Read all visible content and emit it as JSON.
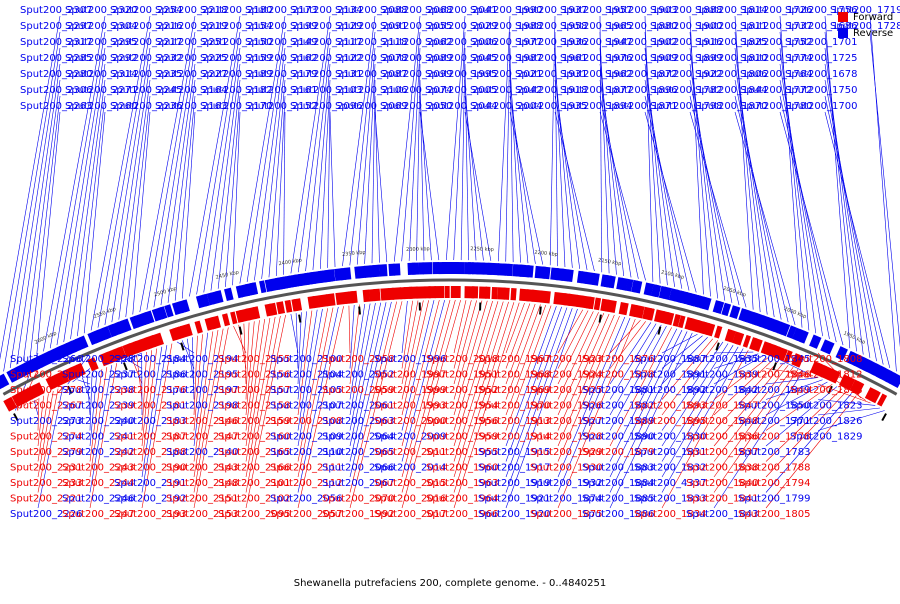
{
  "title": "Shewanella putrefaciens 200, complete genome. - 0..4840251",
  "legend": [
    {
      "label": "Forward",
      "color": "#ee0000"
    },
    {
      "label": "Reverse",
      "color": "#0000ee"
    }
  ],
  "colors": {
    "forward": "#ee0000",
    "reverse": "#0000ee",
    "backbone": "#555555",
    "ticks": "#000000"
  },
  "map": {
    "start_kbp": 2650,
    "end_kbp": 1900,
    "step_kbp": 50
  },
  "tick_labels": [
    "2650 kbp",
    "2600 kbp",
    "2550 kbp",
    "2500 kbp",
    "2450 kbp",
    "2400 kbp",
    "2350 kbp",
    "2300 kbp",
    "2250 kbp",
    "2200 kbp",
    "2150 kbp",
    "2100 kbp",
    "2050 kbp",
    "2000 kbp",
    "1950 kbp",
    "1900 kbp"
  ],
  "labels_outside": [
    "Sput200_2307",
    "Sput200_2297",
    "Sput200_2317",
    "Sput200_2285",
    "Sput200_2280",
    "Sput200_2306",
    "Sput200_2263",
    "Sput200_2320",
    "Sput200_2304",
    "Sput200_2295",
    "Sput200_2292",
    "Sput200_2314",
    "Sput200_2271",
    "Sput200_2260",
    "Sput200_2254",
    "Sput200_2216",
    "Sput200_2217",
    "Sput200_2232",
    "Sput200_2235",
    "Sput200_2245",
    "Sput200_2236",
    "Sput200_2218",
    "Sput200_2219",
    "Sput200_2251",
    "Sput200_2225",
    "Sput200_2227",
    "Sput200_2164",
    "Sput200_2163",
    "Sput200_2180",
    "Sput200_2154",
    "Sput200_2150",
    "Sput200_2159",
    "Sput200_2189",
    "Sput200_2182",
    "Sput200_2170",
    "Sput200_2173",
    "Sput200_2199",
    "Sput200_2149",
    "Sput200_2162",
    "Sput200_2179",
    "Sput200_2161",
    "Sput200_2152",
    "Sput200_2134",
    "Sput200_2129",
    "Sput200_2117",
    "Sput200_2122",
    "Sput200_2131",
    "Sput200_2103",
    "Sput200_2096",
    "Sput200_2088",
    "Sput200_2091",
    "Sput200_2118",
    "Sput200_2078",
    "Sput200_2087",
    "Sput200_2106",
    "Sput200_2069",
    "Sput200_2068",
    "Sput200_2055",
    "Sput200_2062",
    "Sput200_2089",
    "Sput200_2099",
    "Sput200_2074",
    "Sput200_2050",
    "Sput200_2041",
    "Sput200_2029",
    "Sput200_2006",
    "Sput200_2045",
    "Sput200_1995",
    "Sput200_2005",
    "Sput200_2044",
    "Sput200_1990",
    "Sput200_1988",
    "Sput200_1977",
    "Sput200_1987",
    "Sput200_2021",
    "Sput200_2042",
    "Sput200_2004",
    "Sput200_1937",
    "Sput200_1958",
    "Sput200_1936",
    "Sput200_1961",
    "Sput200_1931",
    "Sput200_1918",
    "Sput200_1935",
    "Sput200_1957",
    "Sput200_1965",
    "Sput200_1947",
    "Sput200_1976",
    "Sput200_1962",
    "Sput200_1877",
    "Sput200_1894",
    "Sput200_1903",
    "Sput200_1880",
    "Sput200_1902",
    "Sput200_1909",
    "Sput200_1872",
    "Sput200_1896",
    "Sput200_1871",
    "Sput200_1888",
    "Sput200_1900",
    "Sput200_1916",
    "Sput200_1899",
    "Sput200_1922",
    "Sput200_1782",
    "Sput200_1798",
    "Sput200_1814",
    "Sput200_1811",
    "Sput200_1825",
    "Sput200_1810",
    "Sput200_1806",
    "Sput200_1844",
    "Sput200_1870",
    "Sput200_1726",
    "Sput200_1737",
    "Sput200_1752",
    "Sput200_1774",
    "Sput200_1764",
    "Sput200_1772",
    "Sput200_1780",
    "Sput200_1756",
    "Sput200_1686",
    "Sput200_1701",
    "Sput200_1725",
    "Sput200_1678",
    "Sput200_1750",
    "Sput200_1700",
    "Sput200_1719",
    "Sput200_1728"
  ],
  "labels_inside": [
    {
      "name": "Sput200_2266",
      "strand": "reverse"
    },
    {
      "name": "Sput200_2277",
      "strand": "forward"
    },
    {
      "name": "Sput200_2278",
      "strand": "forward"
    },
    {
      "name": "Sput200_2267",
      "strand": "forward"
    },
    {
      "name": "Sput200_2273",
      "strand": "reverse"
    },
    {
      "name": "Sput200_2274",
      "strand": "forward"
    },
    {
      "name": "Sput200_2279",
      "strand": "forward"
    },
    {
      "name": "Sput200_2231",
      "strand": "forward"
    },
    {
      "name": "Sput200_2233",
      "strand": "forward"
    },
    {
      "name": "Sput200_2221",
      "strand": "forward"
    },
    {
      "name": "Sput200_2226",
      "strand": "reverse"
    },
    {
      "name": "Sput200_2228",
      "strand": "reverse"
    },
    {
      "name": "Sput200_2237",
      "strand": "reverse"
    },
    {
      "name": "Sput200_2238",
      "strand": "reverse"
    },
    {
      "name": "Sput200_2239",
      "strand": "reverse"
    },
    {
      "name": "Sput200_2240",
      "strand": "reverse"
    },
    {
      "name": "Sput200_2241",
      "strand": "reverse"
    },
    {
      "name": "Sput200_2242",
      "strand": "reverse"
    },
    {
      "name": "Sput200_2243",
      "strand": "forward"
    },
    {
      "name": "Sput200_2244",
      "strand": "forward"
    },
    {
      "name": "Sput200_2246",
      "strand": "reverse"
    },
    {
      "name": "Sput200_2247",
      "strand": "forward"
    },
    {
      "name": "Sput200_2184",
      "strand": "reverse"
    },
    {
      "name": "Sput200_2186",
      "strand": "reverse"
    },
    {
      "name": "Sput200_2176",
      "strand": "forward"
    },
    {
      "name": "Sput200_2181",
      "strand": "forward"
    },
    {
      "name": "Sput200_2183",
      "strand": "reverse"
    },
    {
      "name": "Sput200_2187",
      "strand": "forward"
    },
    {
      "name": "Sput200_2188",
      "strand": "forward"
    },
    {
      "name": "Sput200_2190",
      "strand": "forward"
    },
    {
      "name": "Sput200_2191",
      "strand": "reverse"
    },
    {
      "name": "Sput200_2192",
      "strand": "reverse"
    },
    {
      "name": "Sput200_2193",
      "strand": "forward"
    },
    {
      "name": "Sput200_2194",
      "strand": "reverse"
    },
    {
      "name": "Sput200_2195",
      "strand": "reverse"
    },
    {
      "name": "Sput200_2197",
      "strand": "reverse"
    },
    {
      "name": "Sput200_2198",
      "strand": "reverse"
    },
    {
      "name": "Sput200_2146",
      "strand": "forward"
    },
    {
      "name": "Sput200_2147",
      "strand": "forward"
    },
    {
      "name": "Sput200_2140",
      "strand": "reverse"
    },
    {
      "name": "Sput200_2143",
      "strand": "forward"
    },
    {
      "name": "Sput200_2148",
      "strand": "forward"
    },
    {
      "name": "Sput200_2151",
      "strand": "forward"
    },
    {
      "name": "Sput200_2153",
      "strand": "forward"
    },
    {
      "name": "Sput200_2155",
      "strand": "forward"
    },
    {
      "name": "Sput200_2156",
      "strand": "forward"
    },
    {
      "name": "Sput200_2157",
      "strand": "forward"
    },
    {
      "name": "Sput200_2158",
      "strand": "forward"
    },
    {
      "name": "Sput200_2159",
      "strand": "forward"
    },
    {
      "name": "Sput200_2160",
      "strand": "forward"
    },
    {
      "name": "Sput200_2165",
      "strand": "forward"
    },
    {
      "name": "Sput200_2166",
      "strand": "forward"
    },
    {
      "name": "Sput200_2101",
      "strand": "forward"
    },
    {
      "name": "Sput200_2102",
      "strand": "forward"
    },
    {
      "name": "Sput200_2095",
      "strand": "forward"
    },
    {
      "name": "Sput200_2100",
      "strand": "reverse"
    },
    {
      "name": "Sput200_2104",
      "strand": "reverse"
    },
    {
      "name": "Sput200_2105",
      "strand": "reverse"
    },
    {
      "name": "Sput200_2107",
      "strand": "reverse"
    },
    {
      "name": "Sput200_2108",
      "strand": "forward"
    },
    {
      "name": "Sput200_2109",
      "strand": "reverse"
    },
    {
      "name": "Sput200_2110",
      "strand": "reverse"
    },
    {
      "name": "Sput200_2111",
      "strand": "forward"
    },
    {
      "name": "Sput200_2112",
      "strand": "forward"
    },
    {
      "name": "Sput200_2056",
      "strand": "reverse"
    },
    {
      "name": "Sput200_2057",
      "strand": "forward"
    },
    {
      "name": "Sput200_2058",
      "strand": "forward"
    },
    {
      "name": "Sput200_2052",
      "strand": "reverse"
    },
    {
      "name": "Sput200_2059",
      "strand": "forward"
    },
    {
      "name": "Sput200_2061",
      "strand": "reverse"
    },
    {
      "name": "Sput200_2063",
      "strand": "reverse"
    },
    {
      "name": "Sput200_2064",
      "strand": "reverse"
    },
    {
      "name": "Sput200_2065",
      "strand": "reverse"
    },
    {
      "name": "Sput200_2066",
      "strand": "reverse"
    },
    {
      "name": "Sput200_2067",
      "strand": "reverse"
    },
    {
      "name": "Sput200_2070",
      "strand": "forward"
    },
    {
      "name": "Sput200_1992",
      "strand": "forward"
    },
    {
      "name": "Sput200_1996",
      "strand": "reverse"
    },
    {
      "name": "Sput200_1997",
      "strand": "forward"
    },
    {
      "name": "Sput200_1999",
      "strand": "forward"
    },
    {
      "name": "Sput200_1993",
      "strand": "forward"
    },
    {
      "name": "Sput200_2000",
      "strand": "forward"
    },
    {
      "name": "Sput200_2009",
      "strand": "reverse"
    },
    {
      "name": "Sput200_2011",
      "strand": "forward"
    },
    {
      "name": "Sput200_2014",
      "strand": "reverse"
    },
    {
      "name": "Sput200_2015",
      "strand": "forward"
    },
    {
      "name": "Sput200_2016",
      "strand": "forward"
    },
    {
      "name": "Sput200_2017",
      "strand": "forward"
    },
    {
      "name": "Sput200_2018",
      "strand": "forward"
    },
    {
      "name": "Sput200_1951",
      "strand": "forward"
    },
    {
      "name": "Sput200_1952",
      "strand": "forward"
    },
    {
      "name": "Sput200_1954",
      "strand": "forward"
    },
    {
      "name": "Sput200_1956",
      "strand": "forward"
    },
    {
      "name": "Sput200_1959",
      "strand": "forward"
    },
    {
      "name": "Sput200_1955",
      "strand": "forward"
    },
    {
      "name": "Sput200_1960",
      "strand": "forward"
    },
    {
      "name": "Sput200_1963",
      "strand": "forward"
    },
    {
      "name": "Sput200_1964",
      "strand": "forward"
    },
    {
      "name": "Sput200_1966",
      "strand": "forward"
    },
    {
      "name": "Sput200_1967",
      "strand": "forward"
    },
    {
      "name": "Sput200_1968",
      "strand": "forward"
    },
    {
      "name": "Sput200_1969",
      "strand": "forward"
    },
    {
      "name": "Sput200_1970",
      "strand": "forward"
    },
    {
      "name": "Sput200_1913",
      "strand": "forward"
    },
    {
      "name": "Sput200_1914",
      "strand": "forward"
    },
    {
      "name": "Sput200_1915",
      "strand": "reverse"
    },
    {
      "name": "Sput200_1917",
      "strand": "reverse"
    },
    {
      "name": "Sput200_1919",
      "strand": "reverse"
    },
    {
      "name": "Sput200_1921",
      "strand": "reverse"
    },
    {
      "name": "Sput200_1920",
      "strand": "reverse"
    },
    {
      "name": "Sput200_1923",
      "strand": "forward"
    },
    {
      "name": "Sput200_1924",
      "strand": "forward"
    },
    {
      "name": "Sput200_1925",
      "strand": "forward"
    },
    {
      "name": "Sput200_1926",
      "strand": "forward"
    },
    {
      "name": "Sput200_1927",
      "strand": "forward"
    },
    {
      "name": "Sput200_1928",
      "strand": "forward"
    },
    {
      "name": "Sput200_1929",
      "strand": "forward"
    },
    {
      "name": "Sput200_1930",
      "strand": "forward"
    },
    {
      "name": "Sput200_1932",
      "strand": "reverse"
    },
    {
      "name": "Sput200_1874",
      "strand": "reverse"
    },
    {
      "name": "Sput200_1875",
      "strand": "forward"
    },
    {
      "name": "Sput200_1876",
      "strand": "forward"
    },
    {
      "name": "Sput200_1878",
      "strand": "forward"
    },
    {
      "name": "Sput200_1881",
      "strand": "reverse"
    },
    {
      "name": "Sput200_1882",
      "strand": "reverse"
    },
    {
      "name": "Sput200_1889",
      "strand": "reverse"
    },
    {
      "name": "Sput200_1890",
      "strand": "reverse"
    },
    {
      "name": "Sput200_1879",
      "strand": "forward"
    },
    {
      "name": "Sput200_1883",
      "strand": "reverse"
    },
    {
      "name": "Sput200_1884",
      "strand": "reverse"
    },
    {
      "name": "Sput200_1885",
      "strand": "reverse"
    },
    {
      "name": "Sput200_1886",
      "strand": "reverse"
    },
    {
      "name": "Sput200_1887",
      "strand": "reverse"
    },
    {
      "name": "Sput200_1891",
      "strand": "reverse"
    },
    {
      "name": "Sput200_1892",
      "strand": "reverse"
    },
    {
      "name": "Sput200_1893",
      "strand": "forward"
    },
    {
      "name": "Sput200_1895",
      "strand": "forward"
    },
    {
      "name": "Sput200_1830",
      "strand": "reverse"
    },
    {
      "name": "Sput200_1831",
      "strand": "reverse"
    },
    {
      "name": "Sput200_1832",
      "strand": "reverse"
    },
    {
      "name": "Sput200_4337",
      "strand": "reverse"
    },
    {
      "name": "Sput200_1833",
      "strand": "reverse"
    },
    {
      "name": "Sput200_1834",
      "strand": "forward"
    },
    {
      "name": "Sput200_1835",
      "strand": "reverse"
    },
    {
      "name": "Sput200_1839",
      "strand": "reverse"
    },
    {
      "name": "Sput200_1842",
      "strand": "reverse"
    },
    {
      "name": "Sput200_1847",
      "strand": "forward"
    },
    {
      "name": "Sput200_1848",
      "strand": "forward"
    },
    {
      "name": "Sput200_1836",
      "strand": "forward"
    },
    {
      "name": "Sput200_1837",
      "strand": "forward"
    },
    {
      "name": "Sput200_1838",
      "strand": "forward"
    },
    {
      "name": "Sput200_1840",
      "strand": "forward"
    },
    {
      "name": "Sput200_1841",
      "strand": "forward"
    },
    {
      "name": "Sput200_1843",
      "strand": "reverse"
    },
    {
      "name": "Sput200_1845",
      "strand": "reverse"
    },
    {
      "name": "Sput200_1846",
      "strand": "forward"
    },
    {
      "name": "Sput200_1849",
      "strand": "reverse"
    },
    {
      "name": "Sput200_1850",
      "strand": "reverse"
    },
    {
      "name": "Sput200_1771",
      "strand": "reverse"
    },
    {
      "name": "Sput200_1778",
      "strand": "forward"
    },
    {
      "name": "Sput200_1783",
      "strand": "reverse"
    },
    {
      "name": "Sput200_1788",
      "strand": "forward"
    },
    {
      "name": "Sput200_1794",
      "strand": "forward"
    },
    {
      "name": "Sput200_1799",
      "strand": "reverse"
    },
    {
      "name": "Sput200_1805",
      "strand": "forward"
    },
    {
      "name": "Sput200_1808",
      "strand": "forward"
    },
    {
      "name": "Sput200_1812",
      "strand": "forward"
    },
    {
      "name": "Sput200_1818",
      "strand": "forward"
    },
    {
      "name": "Sput200_1823",
      "strand": "reverse"
    },
    {
      "name": "Sput200_1826",
      "strand": "reverse"
    },
    {
      "name": "Sput200_1829",
      "strand": "reverse"
    }
  ]
}
